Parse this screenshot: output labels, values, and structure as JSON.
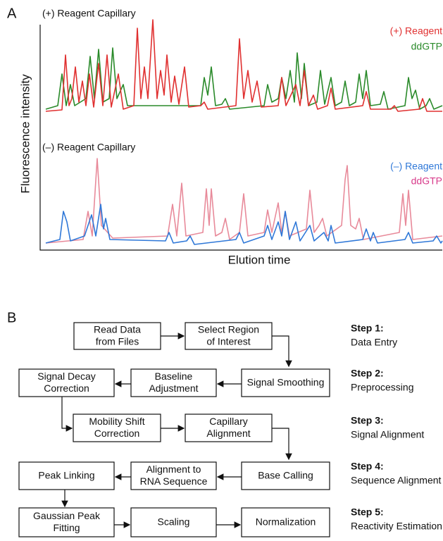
{
  "panel_a": {
    "label": "A",
    "y_axis_label": "Fluorescence intensity",
    "x_axis_label": "Elution time",
    "top": {
      "title": "(+) Reagent Capillary",
      "legend": [
        "(+) Reagent",
        "ddGTP"
      ]
    },
    "bottom": {
      "title": "(–) Reagent Capillary",
      "legend": [
        "(–) Reagent",
        "ddGTP"
      ]
    }
  },
  "panel_b": {
    "label": "B",
    "nodes": [
      {
        "label": [
          "Read Data",
          "from Files"
        ]
      },
      {
        "label": [
          "Select Region",
          "of Interest"
        ]
      },
      {
        "label": [
          "Signal Decay",
          "Correction"
        ]
      },
      {
        "label": [
          "Baseline",
          "Adjustment"
        ]
      },
      {
        "label": [
          "Signal Smoothing"
        ]
      },
      {
        "label": [
          "Mobility Shift",
          "Correction"
        ]
      },
      {
        "label": [
          "Capillary",
          "Alignment"
        ]
      },
      {
        "label": [
          "Peak Linking"
        ]
      },
      {
        "label": [
          "Alignment to",
          "RNA Sequence"
        ]
      },
      {
        "label": [
          "Base Calling"
        ]
      },
      {
        "label": [
          "Gaussian Peak",
          "Fitting"
        ]
      },
      {
        "label": [
          "Scaling"
        ]
      },
      {
        "label": [
          "Normalization"
        ]
      }
    ],
    "steps": [
      {
        "number": "Step 1:",
        "name": "Data Entry"
      },
      {
        "number": "Step 2:",
        "name": "Preprocessing"
      },
      {
        "number": "Step 3:",
        "name": "Signal Alignment"
      },
      {
        "number": "Step 4:",
        "name": "Sequence Alignment"
      },
      {
        "number": "Step 5:",
        "name": "Reactivity Estimation"
      }
    ]
  }
}
